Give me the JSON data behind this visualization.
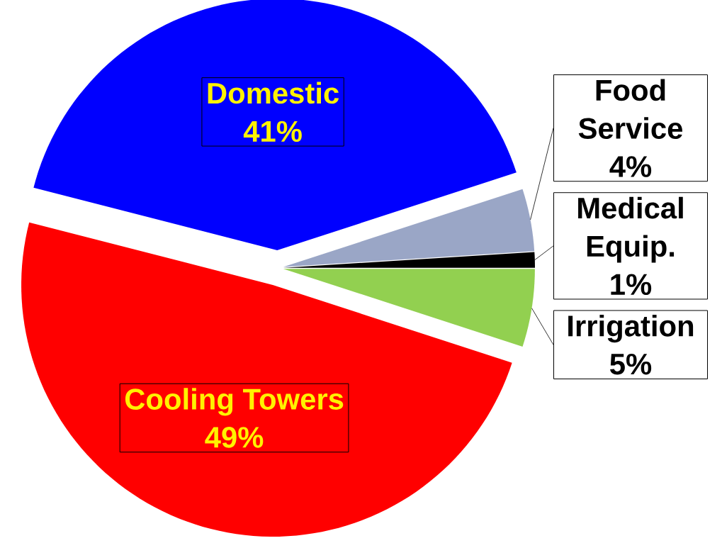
{
  "chart_data": {
    "type": "pie",
    "categories": [
      "Domestic",
      "Food Service",
      "Medical Equip.",
      "Irrigation",
      "Cooling Towers"
    ],
    "values": [
      41,
      4,
      1,
      5,
      49
    ],
    "colors": [
      "#0000ff",
      "#9aa6c6",
      "#000000",
      "#92d050",
      "#ff0000"
    ],
    "data_labels": true,
    "value_labels": [
      "41%",
      "4%",
      "1%",
      "5%",
      "49%"
    ]
  }
}
